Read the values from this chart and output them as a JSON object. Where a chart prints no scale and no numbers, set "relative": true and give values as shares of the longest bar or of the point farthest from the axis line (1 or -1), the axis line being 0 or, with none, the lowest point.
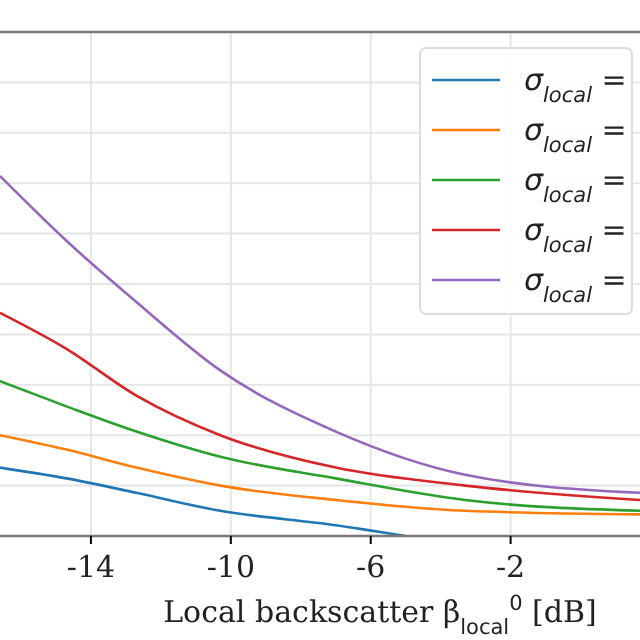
{
  "chart_data": {
    "type": "line",
    "relative": true,
    "xlabel": "Local backscatter β$_{local}$$^{0}$ [dB]",
    "x": [
      -16.6,
      -14.7,
      -12.7,
      -10.3,
      -7,
      -3.3,
      1.7
    ],
    "xlim": [
      -16.6,
      1.7
    ],
    "xticks": [
      -14,
      -10,
      -6,
      -2
    ],
    "grid": true,
    "legend": "top right",
    "line_style": "solid",
    "marker": "none",
    "series": [
      {
        "name": "σ$_{local}$ =",
        "color": "#1f77b4",
        "x": [
          -16.6,
          -14.7,
          -12.7,
          -10.3,
          -7,
          -5
        ],
        "values": [
          0.19,
          0.16,
          0.12,
          0.07,
          0.03,
          0
        ]
      },
      {
        "name": "σ$_{local}$ =",
        "color": "#ff7f0e",
        "values": [
          0.28,
          0.24,
          0.19,
          0.14,
          0.1,
          0.07,
          0.06
        ]
      },
      {
        "name": "σ$_{local}$ =",
        "color": "#2ca02c",
        "values": [
          0.43,
          0.36,
          0.29,
          0.22,
          0.16,
          0.1,
          0.07
        ]
      },
      {
        "name": "σ$_{local}$ =",
        "color": "#d62728",
        "values": [
          0.62,
          0.52,
          0.39,
          0.28,
          0.19,
          0.14,
          0.1
        ]
      },
      {
        "name": "σ$_{local}$ =",
        "color": "#9467bd",
        "values": [
          1,
          0.82,
          0.65,
          0.46,
          0.29,
          0.17,
          0.12
        ]
      }
    ]
  }
}
